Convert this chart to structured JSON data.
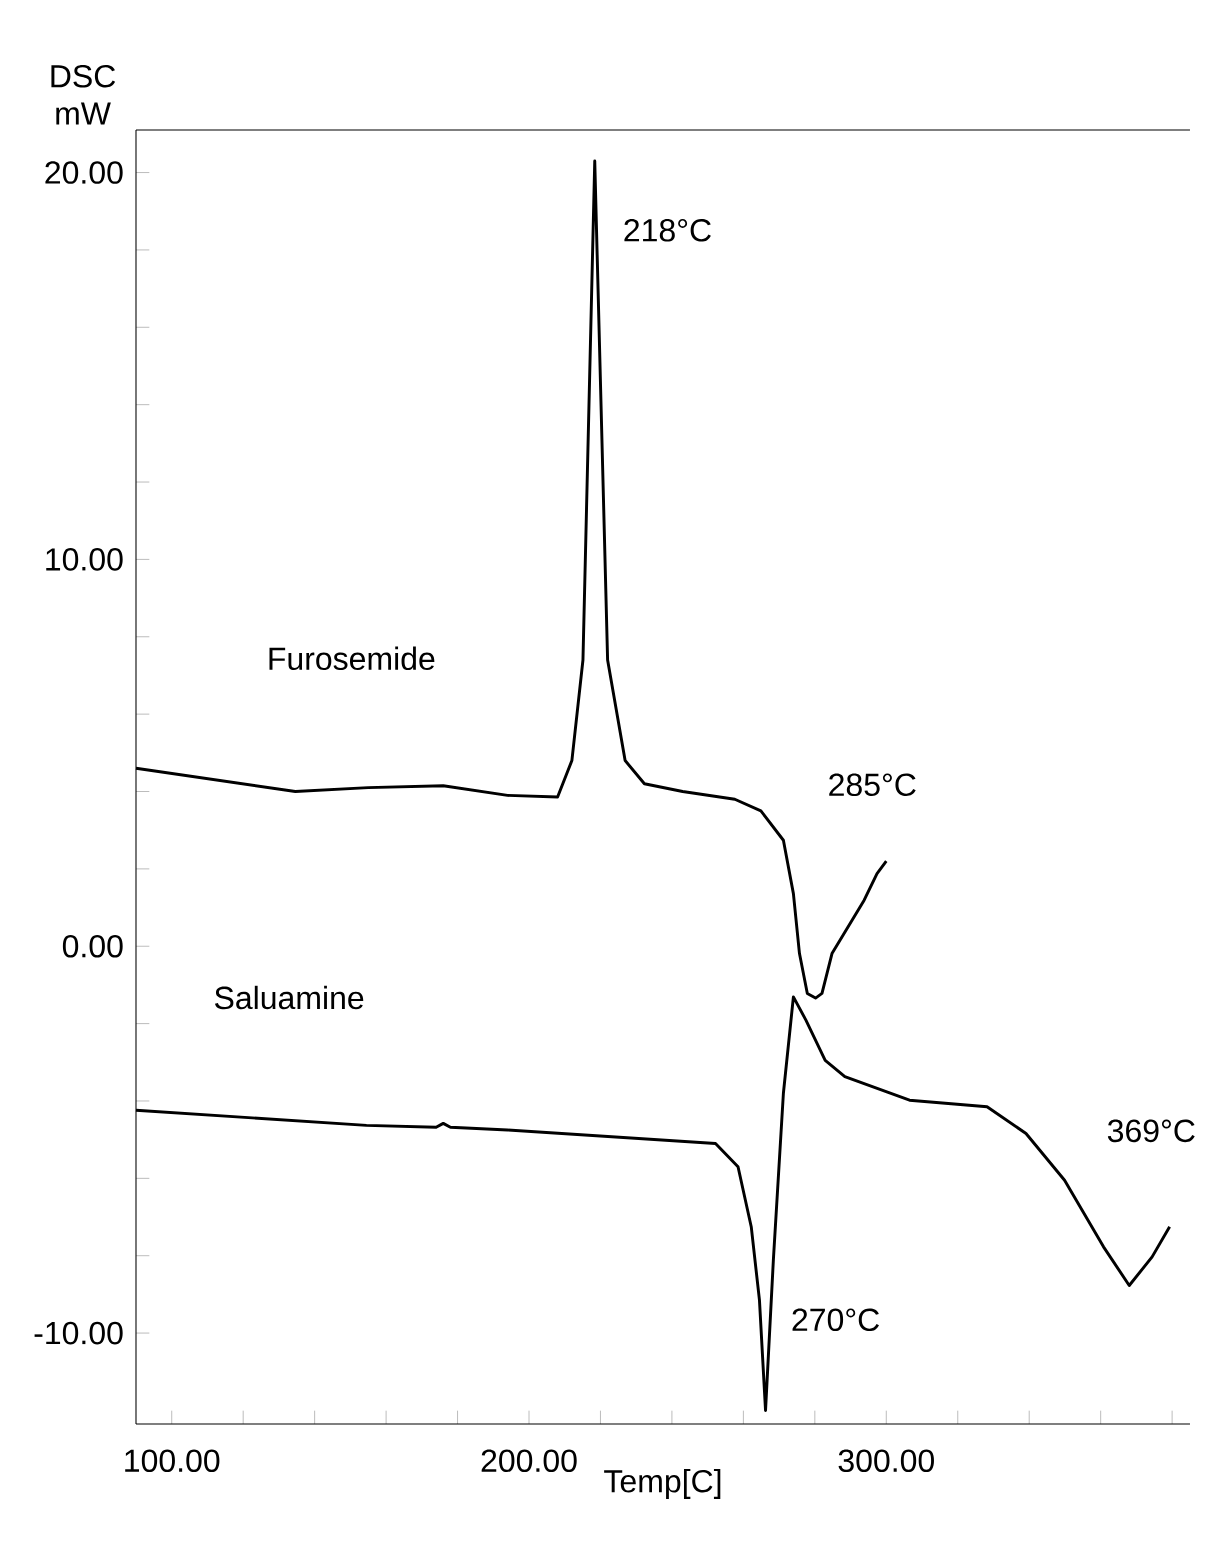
{
  "chart_data": {
    "type": "line",
    "xlabel": "Temp[C]",
    "ylabel": "DSC mW",
    "xlim": [
      90,
      385
    ],
    "ylim": [
      -12.35,
      21.1
    ],
    "xticks": [
      {
        "value": 100,
        "label": "100.00"
      },
      {
        "value": 120,
        "label": null
      },
      {
        "value": 140,
        "label": null
      },
      {
        "value": 160,
        "label": null
      },
      {
        "value": 180,
        "label": null
      },
      {
        "value": 200,
        "label": "200.00"
      },
      {
        "value": 220,
        "label": null
      },
      {
        "value": 240,
        "label": null
      },
      {
        "value": 260,
        "label": null
      },
      {
        "value": 280,
        "label": null
      },
      {
        "value": 300,
        "label": "300.00"
      },
      {
        "value": 320,
        "label": null
      },
      {
        "value": 340,
        "label": null
      },
      {
        "value": 360,
        "label": null
      },
      {
        "value": 380,
        "label": null
      }
    ],
    "yticks": [
      {
        "value": -10,
        "label": "-10.00"
      },
      {
        "value": -8,
        "label": null
      },
      {
        "value": -6,
        "label": null
      },
      {
        "value": -4,
        "label": null
      },
      {
        "value": -2,
        "label": null
      },
      {
        "value": 0,
        "label": "0.00"
      },
      {
        "value": 2,
        "label": null
      },
      {
        "value": 4,
        "label": null
      },
      {
        "value": 6,
        "label": null
      },
      {
        "value": 8,
        "label": null
      },
      {
        "value": 10,
        "label": "10.00"
      },
      {
        "value": 12,
        "label": null
      },
      {
        "value": 14,
        "label": null
      },
      {
        "value": 16,
        "label": null
      },
      {
        "value": 18,
        "label": null
      },
      {
        "value": 20,
        "label": "20.00"
      }
    ],
    "series": [
      {
        "color": "#000000",
        "x": [
          90,
          134.6,
          155,
          176,
          194,
          208,
          212,
          215.1,
          218.4,
          222,
          226.9,
          232.3,
          243,
          257.6,
          264.9,
          271.2,
          274,
          275.7,
          277.9,
          280.2,
          282,
          284.8,
          293.8,
          297.4,
          300
        ],
        "values": [
          4.6,
          4.0,
          4.1,
          4.15,
          3.9,
          3.86,
          4.8,
          7.4,
          20.3,
          7.4,
          4.8,
          4.2,
          4.0,
          3.8,
          3.5,
          2.74,
          1.36,
          -0.19,
          -1.22,
          -1.34,
          -1.22,
          -0.19,
          1.19,
          1.88,
          2.2
        ]
      },
      {
        "color": "#000000",
        "x": [
          90,
          154.5,
          174,
          176,
          178,
          194,
          252.2,
          258.5,
          262.2,
          264.5,
          266.2,
          268.4,
          271.2,
          274,
          277.5,
          282.9,
          288.4,
          306.5,
          328.2,
          339.1,
          349.9,
          360.8,
          368,
          374.4,
          379.3
        ],
        "values": [
          -4.24,
          -4.63,
          -4.68,
          -4.58,
          -4.68,
          -4.75,
          -5.1,
          -5.7,
          -7.25,
          -9.15,
          -12.0,
          -8.1,
          -3.8,
          -1.31,
          -1.91,
          -2.95,
          -3.37,
          -3.98,
          -4.15,
          -4.84,
          -6.05,
          -7.77,
          -8.77,
          -8.03,
          -7.25
        ]
      }
    ],
    "annotations": [
      "Furosemide",
      "Saluamine",
      {
        "text": "218°C",
        "x": 218.4,
        "y": 20.3
      },
      "285°C",
      {
        "text": "270°C",
        "x": 266.2,
        "y": -12.0
      },
      "369°C"
    ]
  }
}
